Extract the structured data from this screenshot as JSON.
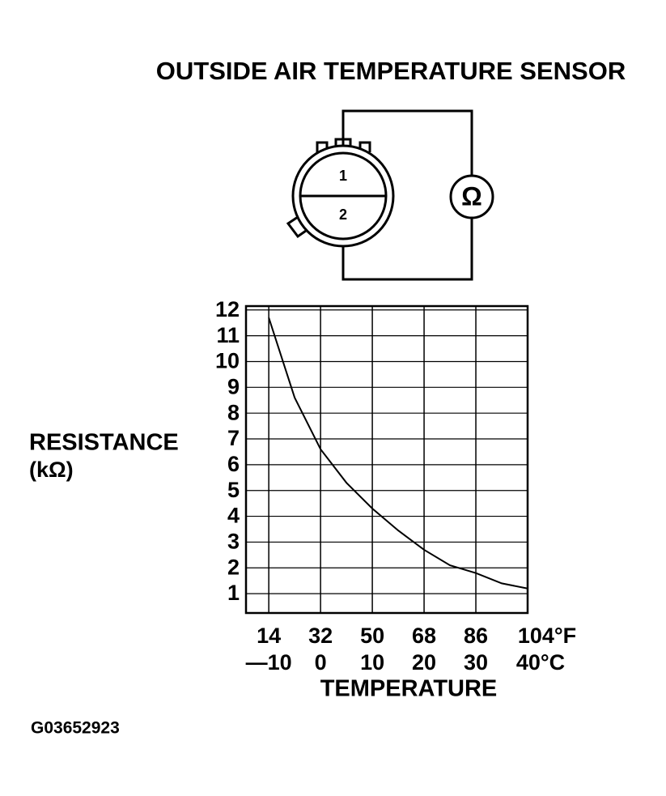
{
  "chart_data": {
    "type": "line",
    "title": "OUTSIDE AIR TEMPERATURE SENSOR",
    "diagram": {
      "pin_labels": [
        "1",
        "2"
      ],
      "meter_symbol": "Ω"
    },
    "y_label": "RESISTANCE",
    "y_unit": "(kΩ)",
    "x_label": "TEMPERATURE",
    "footnote": "G03652923",
    "x": [
      -10,
      -5,
      0,
      5,
      10,
      15,
      20,
      25,
      30,
      35,
      40
    ],
    "series": [
      {
        "name": "Resistance",
        "color": "#000000",
        "values": [
          11.7,
          8.6,
          6.6,
          5.3,
          4.3,
          3.45,
          2.7,
          2.1,
          1.8,
          1.4,
          1.2
        ]
      }
    ],
    "xlim": [
      -14.4,
      40
    ],
    "ylim": [
      0.25,
      12.15
    ],
    "xticks": [
      {
        "value": -10,
        "label": "—10"
      },
      0,
      10,
      20,
      30,
      {
        "value": 40,
        "label": "40°C"
      }
    ],
    "xticks_fahrenheit": [
      {
        "value": -10,
        "label": "14"
      },
      {
        "value": 0,
        "label": "32"
      },
      {
        "value": 10,
        "label": "50"
      },
      {
        "value": 20,
        "label": "68"
      },
      {
        "value": 30,
        "label": "86"
      },
      {
        "value": 40,
        "label": "104°F"
      }
    ],
    "yticks": [
      1,
      2,
      3,
      4,
      5,
      6,
      7,
      8,
      9,
      10,
      11,
      12
    ],
    "grid": true
  }
}
